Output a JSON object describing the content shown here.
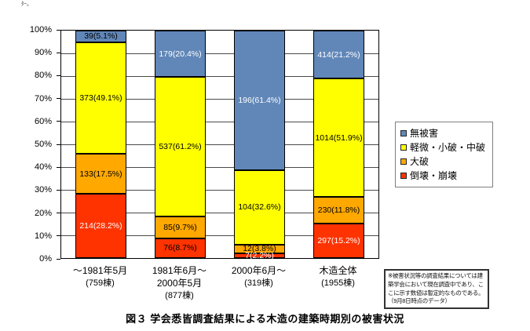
{
  "page": {
    "fragment_text": "ﾀｰ。",
    "caption": "図３ 学会悉皆調査結果による木造の建築時期別の被害状況"
  },
  "note_box": {
    "lines": [
      "※被害状況等の調査結果については建",
      "築学会において現在調査中であり、こ",
      "こに示す数値は暫定的なものである。",
      "（9月8日時点のデータ）"
    ]
  },
  "legend": {
    "items": [
      {
        "label": "無被害",
        "color": "#6187B8"
      },
      {
        "label": "軽微・小破・中破",
        "color": "#FFFF00"
      },
      {
        "label": "大破",
        "color": "#FFA800"
      },
      {
        "label": "倒壊・崩壊",
        "color": "#FF3300"
      }
    ]
  },
  "chart_data": {
    "type": "bar",
    "subtype": "100-percent-stacked-column",
    "title": "図３ 学会悉皆調査結果による木造の建築時期別の被害状況",
    "xlabel": "",
    "ylabel": "",
    "ylim": [
      0,
      100
    ],
    "grid": true,
    "legend_position": "right",
    "yticks": [
      "0%",
      "10%",
      "20%",
      "30%",
      "40%",
      "50%",
      "60%",
      "70%",
      "80%",
      "90%",
      "100%"
    ],
    "categories": [
      {
        "lines": [
          "～1981年5月",
          "(759棟)"
        ],
        "total": 759
      },
      {
        "lines": [
          "1981年6月～",
          "2000年5月",
          "(877棟)"
        ],
        "total": 877
      },
      {
        "lines": [
          "2000年6月～",
          "(319棟)"
        ],
        "total": 319
      },
      {
        "lines": [
          "木造全体",
          "(1955棟)"
        ],
        "total": 1955
      }
    ],
    "stack_order_top_to_bottom": [
      "無被害",
      "軽微・小破・中破",
      "大破",
      "倒壊・崩壊"
    ],
    "series": [
      {
        "name": "無被害",
        "color": "#6187B8",
        "values": [
          39,
          179,
          196,
          414
        ],
        "labels": [
          "39(5.1%)",
          "179(20.4%)",
          "196(61.4%)",
          "414(21.2%)"
        ],
        "label_colors": [
          "#000000",
          "#FFFFFF",
          "#FFFFFF",
          "#FFFFFF"
        ]
      },
      {
        "name": "軽微・小破・中破",
        "color": "#FFFF00",
        "values": [
          373,
          537,
          104,
          1014
        ],
        "labels": [
          "373(49.1%)",
          "537(61.2%)",
          "104(32.6%)",
          "1014(51.9%)"
        ],
        "label_colors": [
          "#000000",
          "#000000",
          "#000000",
          "#000000"
        ]
      },
      {
        "name": "大破",
        "color": "#FFA800",
        "values": [
          133,
          85,
          12,
          230
        ],
        "labels": [
          "133(17.5%)",
          "85(9.7%)",
          "12(3.8%)",
          "230(11.8%)"
        ],
        "label_colors": [
          "#000000",
          "#000000",
          "#000000",
          "#000000"
        ]
      },
      {
        "name": "倒壊・崩壊",
        "color": "#FF3300",
        "values": [
          214,
          76,
          7,
          297
        ],
        "labels": [
          "214(28.2%)",
          "76(8.7%)",
          "7(2.2%)",
          "297(15.2%)"
        ],
        "label_colors": [
          "#FFFFFF",
          "#000000",
          "#FFFFFF",
          "#FFFFFF"
        ]
      }
    ]
  }
}
